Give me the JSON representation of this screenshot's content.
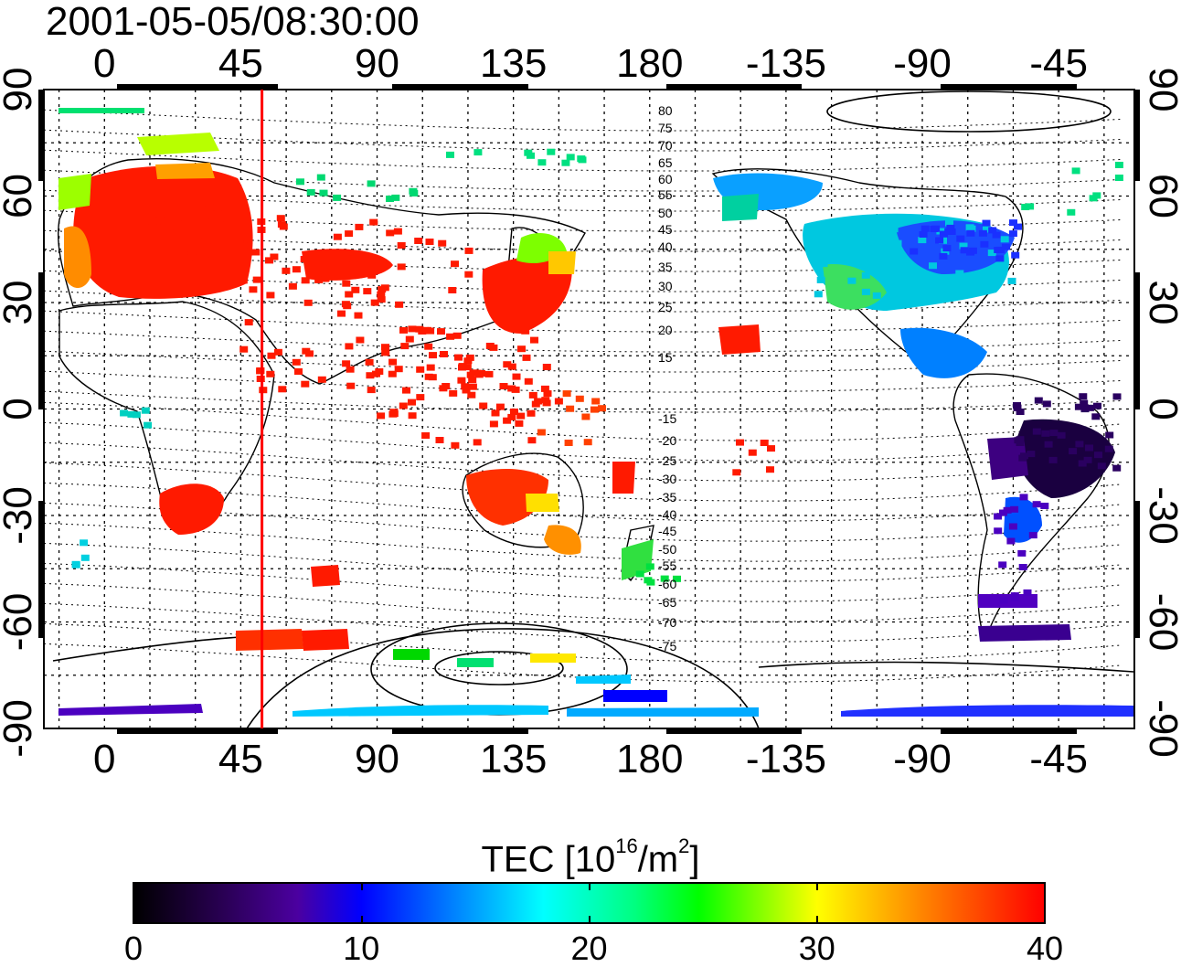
{
  "title": "2001-05-05/08:30:00",
  "map": {
    "lon_ticks_labels": [
      "0",
      "45",
      "90",
      "135",
      "180",
      "-135",
      "-90",
      "-45"
    ],
    "lat_ticks_labels": [
      "90",
      "60",
      "30",
      "0",
      "-30",
      "-60",
      "-90"
    ],
    "lon_range": [
      -20,
      340
    ],
    "lat_range": [
      -90,
      90
    ],
    "grid": true,
    "marker_longitude": 52,
    "marker_color": "#ff0000",
    "contour_labels": [
      "80",
      "75",
      "70",
      "65",
      "60",
      "55",
      "50",
      "45",
      "40",
      "35",
      "30",
      "25",
      "20",
      "15",
      "-15",
      "-20",
      "-25",
      "-30",
      "-35",
      "-40",
      "-45",
      "-50",
      "-55",
      "-60",
      "-65",
      "-70",
      "-75"
    ]
  },
  "colorbar": {
    "title_prefix": "TEC  [10",
    "title_exp1": "16",
    "title_mid": "/m",
    "title_exp2": "2",
    "title_suffix": "]",
    "range": [
      0,
      40
    ],
    "tick_labels": [
      "0",
      "10",
      "20",
      "30",
      "40"
    ],
    "colors": [
      "#000000",
      "#2a0055",
      "#4b00a0",
      "#0000ff",
      "#0080ff",
      "#00ffff",
      "#00ff80",
      "#00ff00",
      "#ffff00",
      "#ff8000",
      "#ff0000"
    ]
  }
}
